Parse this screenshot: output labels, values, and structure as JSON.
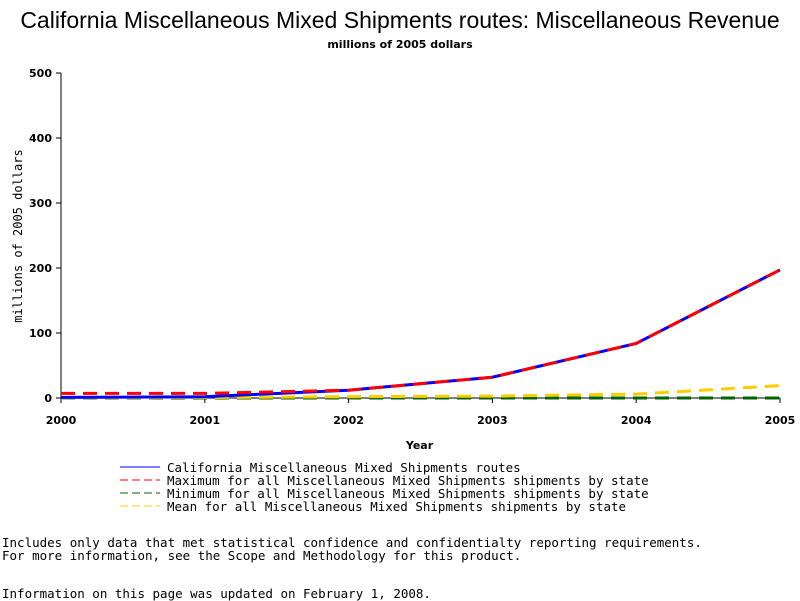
{
  "chart_data": {
    "type": "line",
    "title": "California Miscellaneous Mixed Shipments routes: Miscellaneous Revenue",
    "subtitle": "millions of 2005 dollars",
    "xlabel": "Year",
    "ylabel": "millions of 2005 dollars",
    "x": [
      2000,
      2001,
      2002,
      2003,
      2004,
      2005
    ],
    "x_tick_labels": [
      "2000",
      "2001",
      "2002",
      "2003",
      "2004",
      "2005"
    ],
    "y_tick_labels": [
      "0",
      "100",
      "200",
      "300",
      "400",
      "500"
    ],
    "xlim": [
      2000,
      2005
    ],
    "ylim": [
      0,
      500
    ],
    "grid": false,
    "legend_position": "bottom",
    "series": [
      {
        "name": "California Miscellaneous Mixed Shipments routes",
        "values": [
          1,
          2,
          12,
          32,
          84,
          197
        ],
        "color": "#0000ff",
        "style": "solid"
      },
      {
        "name": "Maximum for all Miscellaneous Mixed Shipments shipments by state",
        "values": [
          7,
          7,
          12,
          32,
          84,
          197
        ],
        "color": "#ff0000",
        "style": "dashed"
      },
      {
        "name": "Minimum for all Miscellaneous Mixed Shipments shipments by state",
        "values": [
          0,
          0,
          0,
          0,
          0,
          0
        ],
        "color": "#006400",
        "style": "dashed"
      },
      {
        "name": "Mean for all Miscellaneous Mixed Shipments shipments by state",
        "values": [
          0.5,
          0.8,
          2,
          3,
          6,
          19
        ],
        "color": "#ffcc00",
        "style": "dashed"
      }
    ]
  },
  "notes": {
    "line1": "Includes only data that met statistical confidence and confidentialty reporting requirements.",
    "line2": "For more information, see the Scope and Methodology for this product.",
    "updated": "Information on this page was updated on February 1, 2008."
  }
}
